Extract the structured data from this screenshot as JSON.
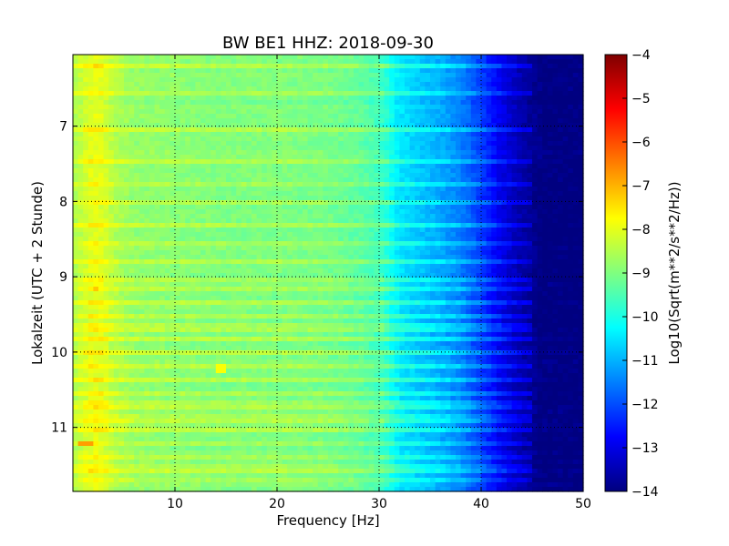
{
  "chart_data": {
    "type": "heatmap",
    "title": "BW BE1 HHZ: 2018-09-30",
    "xlabel": "Frequency [Hz]",
    "ylabel": "Lokalzeit (UTC + 2 Stunde)",
    "colorbar_label": "Log10(Sqrt(m**2/s**2/Hz))",
    "colormap": "jet",
    "xlim": [
      0,
      50
    ],
    "ylim": [
      11.85,
      6.05
    ],
    "y_inverted": true,
    "xticks": [
      10,
      20,
      30,
      40,
      50
    ],
    "xtick_labels": [
      "10",
      "20",
      "30",
      "40",
      "50"
    ],
    "yticks": [
      7,
      8,
      9,
      10,
      11
    ],
    "ytick_labels": [
      "7",
      "8",
      "9",
      "10",
      "11"
    ],
    "clim": [
      -14,
      -4
    ],
    "colorbar_ticks": [
      -4,
      -5,
      -6,
      -7,
      -8,
      -9,
      -10,
      -11,
      -12,
      -13,
      -14
    ],
    "colorbar_tick_labels": [
      "−4",
      "−5",
      "−6",
      "−7",
      "−8",
      "−9",
      "−10",
      "−11",
      "−12",
      "−13",
      "−14"
    ],
    "grid": true,
    "spectral_profile": {
      "frequency_hz": [
        0,
        1,
        2,
        3,
        4,
        6,
        10,
        15,
        20,
        25,
        28,
        30,
        32,
        34,
        36,
        38,
        40,
        42,
        44,
        46,
        50
      ],
      "log10_psd": [
        -8.6,
        -8.3,
        -8.0,
        -8.1,
        -8.5,
        -8.8,
        -8.9,
        -9.0,
        -9.0,
        -9.1,
        -9.3,
        -9.6,
        -10.5,
        -10.8,
        -11.1,
        -11.5,
        -12.2,
        -13.0,
        -13.6,
        -14.0,
        -14.0
      ]
    },
    "bright_rows_local_hour": [
      6.22,
      6.55,
      7.03,
      7.45,
      7.75,
      8.03,
      8.3,
      8.58,
      8.82,
      9.05,
      9.15,
      9.33,
      9.5,
      9.67,
      9.83,
      10.02,
      10.2,
      10.38,
      10.55,
      10.7,
      10.88,
      11.05,
      11.22,
      11.38,
      11.55,
      11.72
    ],
    "feature_patches": [
      {
        "frequency_hz": [
          0.5,
          2.2
        ],
        "local_hour": [
          11.17,
          11.27
        ],
        "log10_psd": -6.8
      },
      {
        "frequency_hz": [
          2.0,
          2.6
        ],
        "local_hour": [
          10.37,
          10.43
        ],
        "log10_psd": -7.0
      },
      {
        "frequency_hz": [
          2.1,
          2.7
        ],
        "local_hour": [
          9.12,
          9.17
        ],
        "log10_psd": -7.2
      },
      {
        "frequency_hz": [
          14.2,
          14.8
        ],
        "local_hour": [
          10.13,
          10.3
        ],
        "log10_psd": -7.8
      }
    ]
  }
}
